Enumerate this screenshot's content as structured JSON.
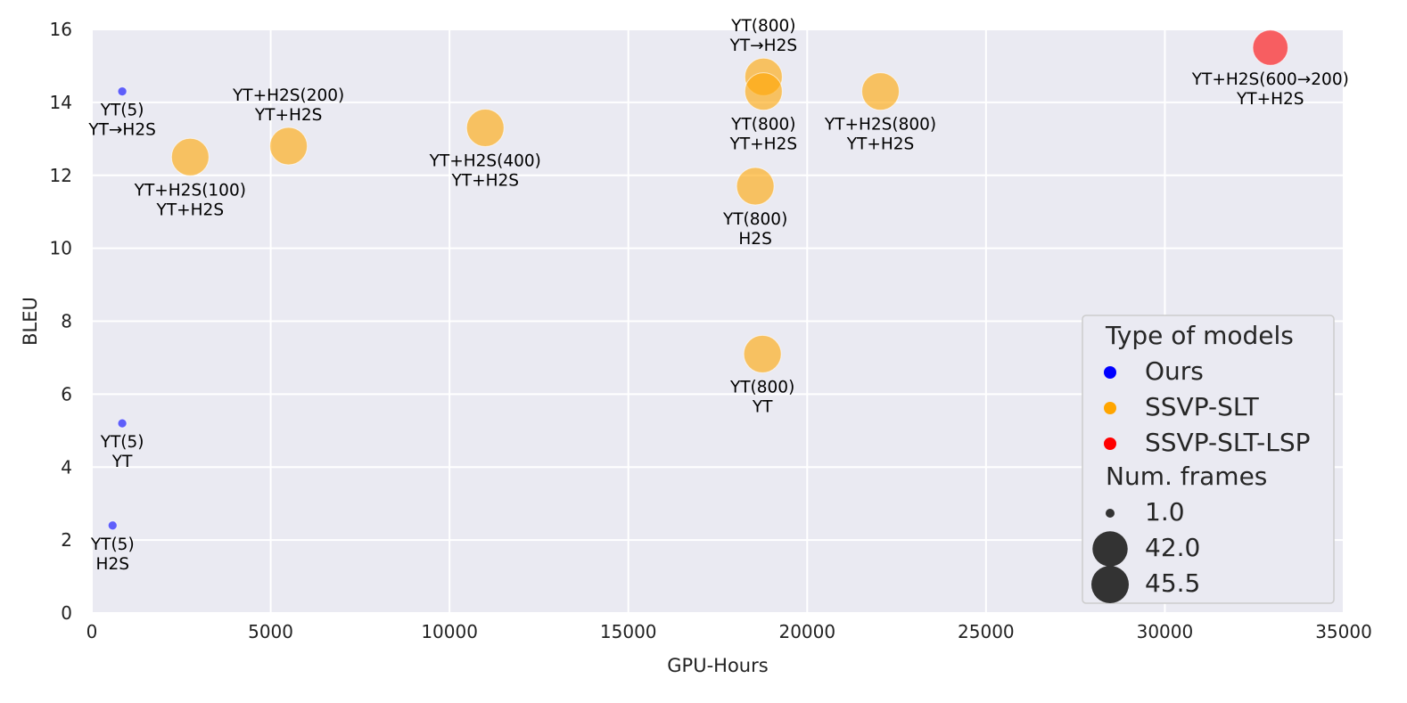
{
  "chart_data": {
    "type": "scatter",
    "title": "",
    "xlabel": "GPU-Hours",
    "ylabel": "BLEU",
    "xlim": [
      0,
      35000
    ],
    "ylim": [
      0,
      16
    ],
    "xticks": [
      0,
      5000,
      10000,
      15000,
      20000,
      25000,
      30000,
      35000
    ],
    "yticks": [
      0,
      2,
      4,
      6,
      8,
      10,
      12,
      14,
      16
    ],
    "grid": true,
    "legend_position": "bottom-right",
    "colors": {
      "Ours": "#0000ff",
      "SSVP-SLT": "#ffa500",
      "SSVP-SLT-LSP": "#ff0000"
    },
    "legend": {
      "title": "Type of models",
      "types": [
        "Ours",
        "SSVP-SLT",
        "SSVP-SLT-LSP"
      ],
      "size_title": "Num. frames",
      "sizes": [
        {
          "label": "1.0",
          "value": 1.0
        },
        {
          "label": "42.0",
          "value": 42.0
        },
        {
          "label": "45.5",
          "value": 45.5
        }
      ]
    },
    "points": [
      {
        "x": 850,
        "y": 14.3,
        "type": "Ours",
        "frames": 1.0,
        "label_lines": [
          "YT(5)",
          "YT→H2S"
        ]
      },
      {
        "x": 850,
        "y": 5.2,
        "type": "Ours",
        "frames": 1.0,
        "label_lines": [
          "YT(5)",
          "YT"
        ]
      },
      {
        "x": 580,
        "y": 2.4,
        "type": "Ours",
        "frames": 1.0,
        "label_lines": [
          "YT(5)",
          "H2S"
        ]
      },
      {
        "x": 2750,
        "y": 12.5,
        "type": "SSVP-SLT",
        "frames": 45.5,
        "label_lines": [
          "YT+H2S(100)",
          "YT+H2S"
        ]
      },
      {
        "x": 5500,
        "y": 12.8,
        "type": "SSVP-SLT",
        "frames": 45.5,
        "label_lines": [
          "YT+H2S(200)",
          "YT+H2S"
        ],
        "label_above": true
      },
      {
        "x": 11000,
        "y": 13.3,
        "type": "SSVP-SLT",
        "frames": 45.5,
        "label_lines": [
          "YT+H2S(400)",
          "YT+H2S"
        ]
      },
      {
        "x": 18780,
        "y": 14.7,
        "type": "SSVP-SLT",
        "frames": 45.5,
        "label_lines": [
          "YT(800)",
          "YT→H2S"
        ],
        "label_above": true
      },
      {
        "x": 18780,
        "y": 14.3,
        "type": "SSVP-SLT",
        "frames": 45.5,
        "label_lines": [
          "YT(800)",
          "YT+H2S"
        ]
      },
      {
        "x": 22050,
        "y": 14.3,
        "type": "SSVP-SLT",
        "frames": 45.5,
        "label_lines": [
          "YT+H2S(800)",
          "YT+H2S"
        ]
      },
      {
        "x": 18550,
        "y": 11.7,
        "type": "SSVP-SLT",
        "frames": 45.5,
        "label_lines": [
          "YT(800)",
          "H2S"
        ]
      },
      {
        "x": 18750,
        "y": 7.1,
        "type": "SSVP-SLT",
        "frames": 45.5,
        "label_lines": [
          "YT(800)",
          "YT"
        ]
      },
      {
        "x": 32950,
        "y": 15.5,
        "type": "SSVP-SLT-LSP",
        "frames": 42.0,
        "label_lines": [
          "YT+H2S(600→200)",
          "YT+H2S"
        ]
      }
    ]
  }
}
